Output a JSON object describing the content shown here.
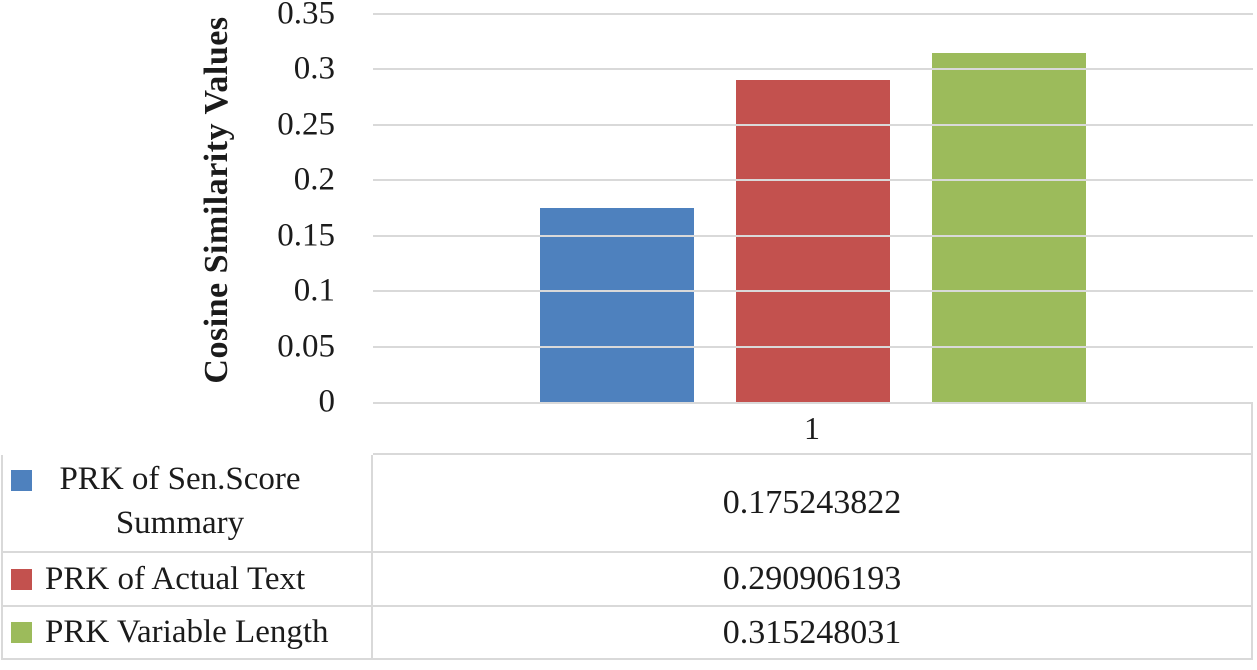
{
  "chart_data": {
    "type": "bar",
    "title": "",
    "ylabel": "Cosine Similarity Values",
    "xlabel": "",
    "categories": [
      "1"
    ],
    "series": [
      {
        "name": "PRK of Sen.Score Summary",
        "color": "#4e81be",
        "values": [
          0.175243822
        ],
        "value_label": "0.175243822"
      },
      {
        "name": "PRK of Actual Text",
        "color": "#c3514e",
        "values": [
          0.290906193
        ],
        "value_label": "0.290906193"
      },
      {
        "name": "PRK Variable Length",
        "color": "#9cbb5b",
        "values": [
          0.315248031
        ],
        "value_label": "0.315248031"
      }
    ],
    "ylim": [
      0,
      0.35
    ],
    "yticks": [
      "0.35",
      "0.3",
      "0.25",
      "0.2",
      "0.15",
      "0.1",
      "0.05",
      "0"
    ],
    "ytick_values": [
      0.35,
      0.3,
      0.25,
      0.2,
      0.15,
      0.1,
      0.05,
      0
    ],
    "grid": true,
    "gridline_color": "#d9d9d9",
    "legend_position": "data-table-left"
  },
  "colors": {
    "background": "#ffffff",
    "text": "#1b1b1b",
    "grid": "#d9d9d9"
  }
}
